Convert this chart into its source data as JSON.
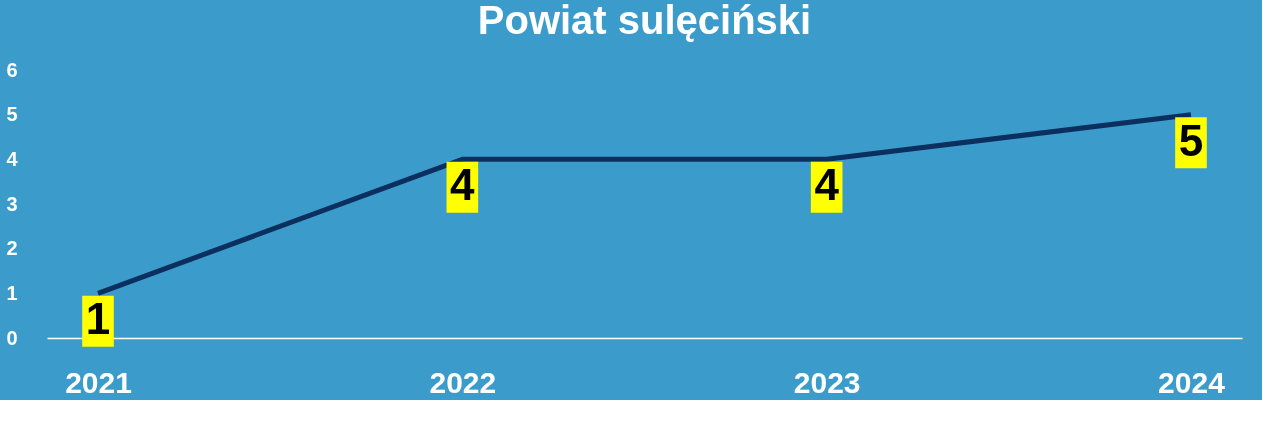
{
  "chart_data": {
    "type": "line",
    "title": "Powiat sulęciński",
    "categories": [
      "2021",
      "2022",
      "2023",
      "2024"
    ],
    "series": [
      {
        "color": "#0b2f5e",
        "values": [
          1,
          4,
          4,
          5
        ]
      }
    ],
    "ylim": [
      0,
      6
    ],
    "yticks": [
      0,
      1,
      2,
      3,
      4,
      5,
      6
    ],
    "data_labels": true,
    "grid": false,
    "legend": false,
    "line_style": "solid"
  }
}
